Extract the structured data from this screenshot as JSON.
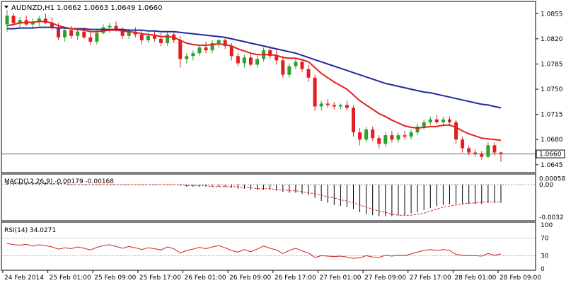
{
  "header": {
    "symbol_label": "AUDNZD,H1",
    "ohlc": "1.0662 1.0663 1.0649 1.0660"
  },
  "chart_data": {
    "type": "candlestick",
    "title": "AUDNZD,H1  1.0662 1.0663 1.0649 1.0660",
    "price_axis_ticks": [
      "1.0855",
      "1.0820",
      "1.0785",
      "1.0750",
      "1.0715",
      "1.0680",
      "1.0645"
    ],
    "price_axis_tick_values": [
      1.0855,
      1.082,
      1.0785,
      1.075,
      1.0715,
      1.068,
      1.0645
    ],
    "ylim": [
      1.0636,
      1.087
    ],
    "current_price_label": "1.0660",
    "current_price": 1.066,
    "time_labels": [
      "24 Feb 2014",
      "25 Feb 01:00",
      "25 Feb 09:00",
      "25 Feb 17:00",
      "26 Feb 01:00",
      "26 Feb 09:00",
      "26 Feb 17:00",
      "27 Feb 01:00",
      "27 Feb 09:00",
      "27 Feb 17:00",
      "28 Feb 01:00",
      "28 Feb 09:00"
    ],
    "candles": [
      {
        "o": 1.084,
        "h": 1.086,
        "l": 1.083,
        "c": 1.0852
      },
      {
        "o": 1.0852,
        "h": 1.0856,
        "l": 1.0838,
        "c": 1.0842
      },
      {
        "o": 1.0842,
        "h": 1.085,
        "l": 1.0836,
        "c": 1.0846
      },
      {
        "o": 1.0846,
        "h": 1.0852,
        "l": 1.0838,
        "c": 1.084
      },
      {
        "o": 1.084,
        "h": 1.0848,
        "l": 1.0834,
        "c": 1.0844
      },
      {
        "o": 1.0844,
        "h": 1.0852,
        "l": 1.0838,
        "c": 1.0848
      },
      {
        "o": 1.0848,
        "h": 1.0855,
        "l": 1.084,
        "c": 1.0842
      },
      {
        "o": 1.0842,
        "h": 1.085,
        "l": 1.0832,
        "c": 1.0836
      },
      {
        "o": 1.0836,
        "h": 1.0842,
        "l": 1.0818,
        "c": 1.0822
      },
      {
        "o": 1.0822,
        "h": 1.0836,
        "l": 1.0816,
        "c": 1.0832
      },
      {
        "o": 1.0832,
        "h": 1.0838,
        "l": 1.082,
        "c": 1.0824
      },
      {
        "o": 1.0824,
        "h": 1.0834,
        "l": 1.0818,
        "c": 1.083
      },
      {
        "o": 1.083,
        "h": 1.0836,
        "l": 1.082,
        "c": 1.0822
      },
      {
        "o": 1.0822,
        "h": 1.083,
        "l": 1.0812,
        "c": 1.0816
      },
      {
        "o": 1.0816,
        "h": 1.0832,
        "l": 1.0812,
        "c": 1.0828
      },
      {
        "o": 1.0828,
        "h": 1.084,
        "l": 1.0826,
        "c": 1.0836
      },
      {
        "o": 1.0836,
        "h": 1.0842,
        "l": 1.0828,
        "c": 1.0838
      },
      {
        "o": 1.0838,
        "h": 1.0844,
        "l": 1.083,
        "c": 1.0832
      },
      {
        "o": 1.0832,
        "h": 1.0836,
        "l": 1.082,
        "c": 1.0824
      },
      {
        "o": 1.0824,
        "h": 1.0834,
        "l": 1.082,
        "c": 1.083
      },
      {
        "o": 1.083,
        "h": 1.0836,
        "l": 1.0822,
        "c": 1.0826
      },
      {
        "o": 1.0826,
        "h": 1.0832,
        "l": 1.0812,
        "c": 1.0818
      },
      {
        "o": 1.0818,
        "h": 1.0828,
        "l": 1.0814,
        "c": 1.0824
      },
      {
        "o": 1.0824,
        "h": 1.083,
        "l": 1.0816,
        "c": 1.082
      },
      {
        "o": 1.082,
        "h": 1.0828,
        "l": 1.081,
        "c": 1.0814
      },
      {
        "o": 1.0814,
        "h": 1.083,
        "l": 1.081,
        "c": 1.0826
      },
      {
        "o": 1.0826,
        "h": 1.083,
        "l": 1.0814,
        "c": 1.0818
      },
      {
        "o": 1.0818,
        "h": 1.0824,
        "l": 1.078,
        "c": 1.0792
      },
      {
        "o": 1.0792,
        "h": 1.08,
        "l": 1.0786,
        "c": 1.0796
      },
      {
        "o": 1.0796,
        "h": 1.0804,
        "l": 1.079,
        "c": 1.08
      },
      {
        "o": 1.08,
        "h": 1.0812,
        "l": 1.0796,
        "c": 1.0808
      },
      {
        "o": 1.0808,
        "h": 1.0816,
        "l": 1.08,
        "c": 1.0804
      },
      {
        "o": 1.0804,
        "h": 1.0818,
        "l": 1.08,
        "c": 1.0814
      },
      {
        "o": 1.0814,
        "h": 1.082,
        "l": 1.0808,
        "c": 1.0818
      },
      {
        "o": 1.0818,
        "h": 1.0822,
        "l": 1.0806,
        "c": 1.081
      },
      {
        "o": 1.081,
        "h": 1.0814,
        "l": 1.079,
        "c": 1.0796
      },
      {
        "o": 1.0796,
        "h": 1.08,
        "l": 1.0782,
        "c": 1.0786
      },
      {
        "o": 1.0786,
        "h": 1.0798,
        "l": 1.078,
        "c": 1.0794
      },
      {
        "o": 1.0794,
        "h": 1.08,
        "l": 1.0782,
        "c": 1.0784
      },
      {
        "o": 1.0784,
        "h": 1.0796,
        "l": 1.078,
        "c": 1.0792
      },
      {
        "o": 1.0792,
        "h": 1.0808,
        "l": 1.0788,
        "c": 1.0804
      },
      {
        "o": 1.0804,
        "h": 1.081,
        "l": 1.0792,
        "c": 1.0796
      },
      {
        "o": 1.0796,
        "h": 1.0804,
        "l": 1.0784,
        "c": 1.079
      },
      {
        "o": 1.079,
        "h": 1.0796,
        "l": 1.0766,
        "c": 1.077
      },
      {
        "o": 1.077,
        "h": 1.0786,
        "l": 1.0766,
        "c": 1.0782
      },
      {
        "o": 1.0782,
        "h": 1.0792,
        "l": 1.0778,
        "c": 1.0788
      },
      {
        "o": 1.0788,
        "h": 1.0792,
        "l": 1.0774,
        "c": 1.0778
      },
      {
        "o": 1.0778,
        "h": 1.0784,
        "l": 1.076,
        "c": 1.0766
      },
      {
        "o": 1.0766,
        "h": 1.077,
        "l": 1.072,
        "c": 1.0726
      },
      {
        "o": 1.0726,
        "h": 1.0734,
        "l": 1.072,
        "c": 1.073
      },
      {
        "o": 1.073,
        "h": 1.0736,
        "l": 1.0724,
        "c": 1.0728
      },
      {
        "o": 1.0728,
        "h": 1.0732,
        "l": 1.0722,
        "c": 1.0726
      },
      {
        "o": 1.0726,
        "h": 1.073,
        "l": 1.0722,
        "c": 1.0728
      },
      {
        "o": 1.0728,
        "h": 1.0734,
        "l": 1.072,
        "c": 1.0724
      },
      {
        "o": 1.0724,
        "h": 1.0728,
        "l": 1.0684,
        "c": 1.069
      },
      {
        "o": 1.069,
        "h": 1.0696,
        "l": 1.0672,
        "c": 1.068
      },
      {
        "o": 1.068,
        "h": 1.0698,
        "l": 1.0676,
        "c": 1.0694
      },
      {
        "o": 1.0694,
        "h": 1.0698,
        "l": 1.0678,
        "c": 1.0682
      },
      {
        "o": 1.0682,
        "h": 1.0686,
        "l": 1.0668,
        "c": 1.0674
      },
      {
        "o": 1.0674,
        "h": 1.069,
        "l": 1.067,
        "c": 1.0686
      },
      {
        "o": 1.0686,
        "h": 1.0692,
        "l": 1.0676,
        "c": 1.068
      },
      {
        "o": 1.068,
        "h": 1.069,
        "l": 1.0676,
        "c": 1.0686
      },
      {
        "o": 1.0686,
        "h": 1.0692,
        "l": 1.068,
        "c": 1.0684
      },
      {
        "o": 1.0684,
        "h": 1.0694,
        "l": 1.068,
        "c": 1.069
      },
      {
        "o": 1.069,
        "h": 1.0702,
        "l": 1.0686,
        "c": 1.0698
      },
      {
        "o": 1.0698,
        "h": 1.0708,
        "l": 1.0694,
        "c": 1.0704
      },
      {
        "o": 1.0704,
        "h": 1.0712,
        "l": 1.07,
        "c": 1.0708
      },
      {
        "o": 1.0708,
        "h": 1.0714,
        "l": 1.0702,
        "c": 1.0704
      },
      {
        "o": 1.0704,
        "h": 1.0712,
        "l": 1.0698,
        "c": 1.0708
      },
      {
        "o": 1.0708,
        "h": 1.0712,
        "l": 1.07,
        "c": 1.0704
      },
      {
        "o": 1.0704,
        "h": 1.0708,
        "l": 1.0674,
        "c": 1.068
      },
      {
        "o": 1.068,
        "h": 1.0684,
        "l": 1.0662,
        "c": 1.0668
      },
      {
        "o": 1.0668,
        "h": 1.0672,
        "l": 1.0658,
        "c": 1.0662
      },
      {
        "o": 1.0662,
        "h": 1.0666,
        "l": 1.0656,
        "c": 1.066
      },
      {
        "o": 1.066,
        "h": 1.0664,
        "l": 1.0652,
        "c": 1.0656
      },
      {
        "o": 1.0656,
        "h": 1.0676,
        "l": 1.0654,
        "c": 1.0672
      },
      {
        "o": 1.0672,
        "h": 1.0676,
        "l": 1.0658,
        "c": 1.0662
      },
      {
        "o": 1.0662,
        "h": 1.0663,
        "l": 1.0649,
        "c": 1.066
      }
    ],
    "ma_fast": [
      1.0838,
      1.084,
      1.0842,
      1.0843,
      1.0843,
      1.0844,
      1.0844,
      1.0842,
      1.0838,
      1.0836,
      1.0834,
      1.0833,
      1.0832,
      1.083,
      1.083,
      1.0831,
      1.0832,
      1.0832,
      1.0831,
      1.083,
      1.0829,
      1.0827,
      1.0826,
      1.0825,
      1.0823,
      1.0823,
      1.0822,
      1.0818,
      1.0814,
      1.0812,
      1.0811,
      1.0811,
      1.0812,
      1.0813,
      1.0812,
      1.081,
      1.0806,
      1.0803,
      1.08,
      1.0798,
      1.0798,
      1.0798,
      1.0797,
      1.0794,
      1.0793,
      1.0793,
      1.0791,
      1.0788,
      1.078,
      1.0772,
      1.0766,
      1.076,
      1.0755,
      1.075,
      1.0742,
      1.0734,
      1.0728,
      1.0722,
      1.0716,
      1.0712,
      1.0707,
      1.0703,
      1.0699,
      1.0697,
      1.0696,
      1.0697,
      1.0698,
      1.0698,
      1.07,
      1.07,
      1.0697,
      1.0692,
      1.0688,
      1.0685,
      1.0682,
      1.0681,
      1.068,
      1.0679
    ],
    "ma_slow": [
      1.0834,
      1.0834,
      1.0835,
      1.0835,
      1.0835,
      1.0836,
      1.0836,
      1.0836,
      1.0835,
      1.0835,
      1.0834,
      1.0834,
      1.0834,
      1.0833,
      1.0833,
      1.0833,
      1.0833,
      1.0833,
      1.0833,
      1.0832,
      1.0832,
      1.0832,
      1.0831,
      1.0831,
      1.083,
      1.083,
      1.083,
      1.0829,
      1.0828,
      1.0827,
      1.0826,
      1.0825,
      1.0824,
      1.0823,
      1.0822,
      1.082,
      1.0818,
      1.0816,
      1.0814,
      1.0812,
      1.081,
      1.0808,
      1.0806,
      1.0804,
      1.0802,
      1.08,
      1.0797,
      1.0794,
      1.0791,
      1.0788,
      1.0785,
      1.0782,
      1.0779,
      1.0776,
      1.0773,
      1.077,
      1.0767,
      1.0764,
      1.0761,
      1.0758,
      1.0756,
      1.0754,
      1.0752,
      1.075,
      1.0748,
      1.0746,
      1.0745,
      1.0743,
      1.0741,
      1.0739,
      1.0737,
      1.0735,
      1.0733,
      1.0731,
      1.0729,
      1.0728,
      1.0726,
      1.0724
    ],
    "macd": {
      "label": "MACD(12,26,9) -0.00179 -0.00168",
      "ticks": [
        "0.00058",
        "0.00",
        "-0.0032"
      ],
      "tick_values": [
        0.00058,
        0.0,
        -0.0032
      ],
      "ylim": [
        -0.0034,
        0.0009
      ],
      "histogram": [
        0.0002,
        0.0002,
        0.0002,
        0.0002,
        0.0002,
        0.0002,
        0.0002,
        0.0001,
        0.0001,
        0.0,
        0.0,
        0.0,
        0.0,
        0.0,
        0.0,
        0.0,
        0.0,
        0.0,
        0.0,
        0.0,
        0.0,
        0.0,
        0.0,
        0.0,
        0.0,
        0.0,
        0.0,
        -0.0001,
        -0.0002,
        -0.0002,
        -0.0002,
        -0.0002,
        -0.0002,
        -0.0002,
        -0.0002,
        -0.0003,
        -0.0004,
        -0.0004,
        -0.0005,
        -0.0005,
        -0.0005,
        -0.0005,
        -0.0006,
        -0.0007,
        -0.0008,
        -0.0008,
        -0.0009,
        -0.001,
        -0.0013,
        -0.0016,
        -0.0018,
        -0.002,
        -0.0021,
        -0.0022,
        -0.0024,
        -0.0027,
        -0.0029,
        -0.003,
        -0.0031,
        -0.0031,
        -0.0031,
        -0.003,
        -0.003,
        -0.0028,
        -0.0027,
        -0.0025,
        -0.0023,
        -0.0021,
        -0.002,
        -0.0019,
        -0.0019,
        -0.0019,
        -0.0019,
        -0.0019,
        -0.0019,
        -0.0018,
        -0.0018,
        -0.0018
      ],
      "signal": [
        0.0001,
        0.0001,
        0.0001,
        0.0001,
        0.0001,
        0.0001,
        0.0001,
        0.0001,
        0.0001,
        0.0001,
        0.0,
        0.0,
        0.0,
        0.0,
        0.0,
        0.0,
        0.0,
        0.0,
        0.0,
        0.0,
        0.0,
        0.0,
        0.0,
        0.0,
        0.0,
        0.0,
        0.0,
        0.0,
        -0.0001,
        -0.0001,
        -0.0001,
        -0.0001,
        -0.0002,
        -0.0002,
        -0.0002,
        -0.0002,
        -0.0002,
        -0.0003,
        -0.0003,
        -0.0004,
        -0.0004,
        -0.0004,
        -0.0005,
        -0.0005,
        -0.0006,
        -0.0006,
        -0.0007,
        -0.0008,
        -0.0009,
        -0.001,
        -0.0012,
        -0.0013,
        -0.0015,
        -0.0016,
        -0.0018,
        -0.002,
        -0.0022,
        -0.0024,
        -0.0026,
        -0.0027,
        -0.0029,
        -0.003,
        -0.003,
        -0.003,
        -0.0029,
        -0.0028,
        -0.0026,
        -0.0024,
        -0.0022,
        -0.0021,
        -0.002,
        -0.0019,
        -0.0018,
        -0.0018,
        -0.0017,
        -0.0017,
        -0.0017,
        -0.0017
      ]
    },
    "rsi": {
      "label": "RSI(14) 34.0271",
      "ticks": [
        "100",
        "70",
        "30",
        "0"
      ],
      "tick_values": [
        100,
        70,
        30,
        0
      ],
      "ylim": [
        0,
        100
      ],
      "values": [
        58,
        55,
        54,
        56,
        52,
        55,
        53,
        50,
        45,
        48,
        46,
        50,
        47,
        43,
        49,
        53,
        55,
        51,
        47,
        51,
        48,
        44,
        48,
        46,
        43,
        50,
        46,
        36,
        42,
        45,
        49,
        46,
        50,
        53,
        48,
        42,
        38,
        44,
        39,
        45,
        52,
        47,
        43,
        35,
        42,
        47,
        41,
        36,
        26,
        30,
        29,
        28,
        29,
        27,
        24,
        25,
        30,
        27,
        26,
        31,
        29,
        31,
        30,
        34,
        38,
        42,
        44,
        42,
        44,
        42,
        33,
        31,
        30,
        30,
        29,
        35,
        31,
        34
      ]
    }
  }
}
